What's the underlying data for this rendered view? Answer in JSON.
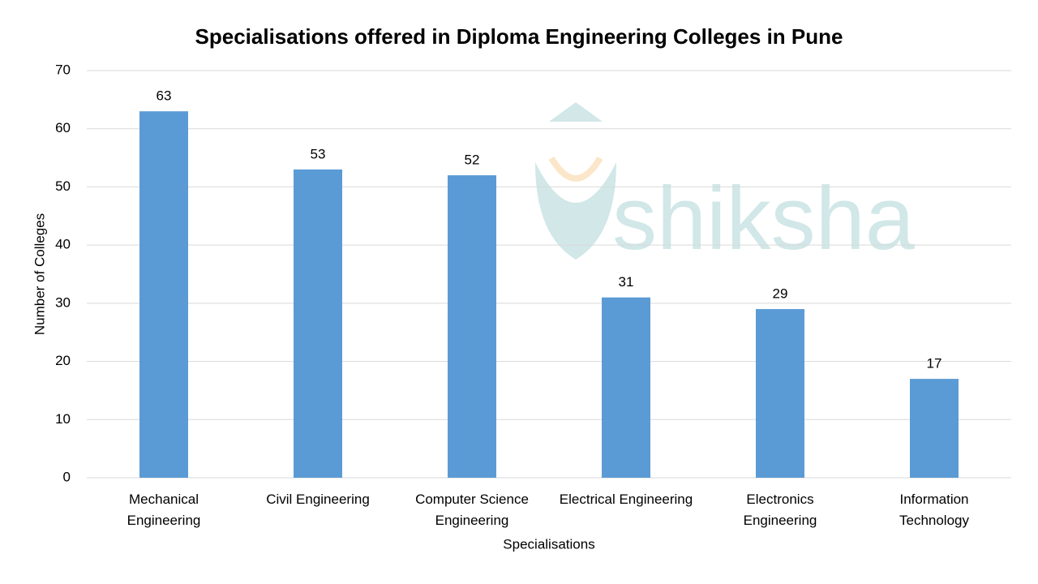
{
  "chart_data": {
    "type": "bar",
    "title": "Specialisations offered in Diploma Engineering Colleges in Pune",
    "x_label": "Specialisations",
    "y_label": "Number of Colleges",
    "watermark": "shiksha",
    "categories": [
      "Mechanical\nEngineering",
      "Civil Engineering",
      "Computer Science\nEngineering",
      "Electrical Engineering",
      "Electronics\nEngineering",
      "Information\nTechnology"
    ],
    "values": [
      63,
      53,
      52,
      31,
      29,
      17
    ],
    "color": "#5b9bd5",
    "ylim": [
      0,
      70
    ],
    "yticks": [
      0,
      10,
      20,
      30,
      40,
      50,
      60,
      70
    ],
    "grid": true
  }
}
